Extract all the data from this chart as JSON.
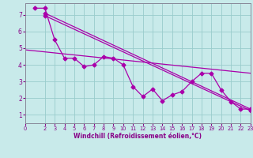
{
  "xlabel": "Windchill (Refroidissement éolien,°C)",
  "bg_color": "#c8eaea",
  "line_color": "#aa00aa",
  "grid_color": "#99cccc",
  "spine_color": "#888899",
  "xlim": [
    0,
    23
  ],
  "ylim": [
    0.5,
    7.7
  ],
  "xticks": [
    0,
    2,
    3,
    4,
    5,
    6,
    7,
    8,
    9,
    10,
    11,
    12,
    13,
    14,
    15,
    16,
    17,
    18,
    19,
    20,
    21,
    22,
    23
  ],
  "yticks": [
    1,
    2,
    3,
    4,
    5,
    6,
    7
  ],
  "series_x": [
    [
      1,
      2,
      3,
      4,
      5,
      6,
      7,
      8,
      9,
      10,
      11,
      12,
      13,
      14,
      15,
      16,
      17,
      18,
      19,
      20,
      21,
      22,
      23
    ],
    [
      2,
      23
    ],
    [
      2,
      23
    ],
    [
      0,
      23
    ]
  ],
  "series_y": [
    [
      7.4,
      7.4,
      5.5,
      4.4,
      4.4,
      3.9,
      4.0,
      4.5,
      4.4,
      4.0,
      2.7,
      2.1,
      2.55,
      1.85,
      2.2,
      2.4,
      3.0,
      3.5,
      3.5,
      2.5,
      1.8,
      1.35,
      1.35
    ],
    [
      7.1,
      1.35
    ],
    [
      6.95,
      1.25
    ],
    [
      4.9,
      3.5
    ]
  ]
}
